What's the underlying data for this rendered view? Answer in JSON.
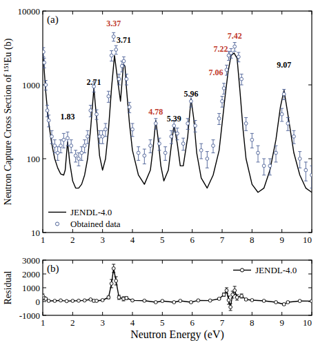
{
  "chart_data": [
    {
      "type": "line",
      "title": "(a)",
      "ylabel": "Neutron Capture Cross Section of ¹⁵¹Eu (b)",
      "log": "y",
      "xlim": [
        1,
        10
      ],
      "xticks": [
        1,
        2,
        3,
        4,
        5,
        6,
        7,
        8,
        9,
        10
      ],
      "ylim": [
        10,
        10000
      ],
      "yticks": [
        10,
        100,
        1000,
        10000
      ],
      "legend": "lower left",
      "series": [
        {
          "name": "JENDL-4.0",
          "type": "line",
          "color": "#000000",
          "x": [
            1.0,
            1.1,
            1.2,
            1.3,
            1.4,
            1.5,
            1.6,
            1.7,
            1.75,
            1.83,
            1.9,
            2.0,
            2.1,
            2.2,
            2.3,
            2.4,
            2.5,
            2.6,
            2.71,
            2.8,
            2.9,
            3.0,
            3.1,
            3.2,
            3.3,
            3.4,
            3.5,
            3.6,
            3.7,
            3.75,
            3.8,
            3.9,
            4.0,
            4.2,
            4.4,
            4.6,
            4.7,
            4.78,
            4.85,
            4.95,
            5.05,
            5.2,
            5.3,
            5.39,
            5.5,
            5.6,
            5.7,
            5.85,
            5.96,
            6.05,
            6.15,
            6.3,
            6.5,
            6.7,
            6.9,
            7.0,
            7.1,
            7.2,
            7.3,
            7.4,
            7.5,
            7.6,
            7.7,
            7.8,
            8.0,
            8.2,
            8.4,
            8.6,
            8.8,
            8.95,
            9.07,
            9.2,
            9.4,
            9.6,
            9.8,
            10.0
          ],
          "values": [
            3000,
            800,
            300,
            160,
            100,
            75,
            62,
            60,
            70,
            170,
            90,
            50,
            40,
            40,
            45,
            60,
            100,
            250,
            900,
            350,
            110,
            70,
            100,
            250,
            900,
            2500,
            1200,
            600,
            1900,
            1800,
            900,
            300,
            130,
            60,
            45,
            70,
            150,
            330,
            200,
            80,
            50,
            70,
            150,
            290,
            160,
            80,
            80,
            200,
            650,
            350,
            120,
            55,
            40,
            60,
            130,
            300,
            700,
            1500,
            2500,
            2700,
            2300,
            800,
            250,
            100,
            45,
            35,
            40,
            70,
            180,
            500,
            850,
            400,
            120,
            60,
            40,
            35
          ]
        },
        {
          "name": "Obtained data",
          "type": "scatter",
          "marker": "circle",
          "color": "#4a5f95",
          "x": [
            1.02,
            1.05,
            1.1,
            1.15,
            1.2,
            1.3,
            1.4,
            1.5,
            1.6,
            1.7,
            1.83,
            1.95,
            2.1,
            2.2,
            2.3,
            2.4,
            2.5,
            2.6,
            2.71,
            2.8,
            2.9,
            3.0,
            3.1,
            3.2,
            3.3,
            3.37,
            3.45,
            3.55,
            3.65,
            3.71,
            3.8,
            3.9,
            4.0,
            4.2,
            4.4,
            4.6,
            4.78,
            4.9,
            5.1,
            5.3,
            5.39,
            5.5,
            5.7,
            5.85,
            5.96,
            6.1,
            6.3,
            6.5,
            6.7,
            6.9,
            7.0,
            7.06,
            7.15,
            7.22,
            7.3,
            7.42,
            7.55,
            7.65,
            7.8,
            8.0,
            8.2,
            8.4,
            8.6,
            8.8,
            9.0,
            9.07,
            9.2,
            9.4,
            9.6,
            9.8,
            10.0
          ],
          "values": [
            2800,
            2000,
            1000,
            450,
            330,
            200,
            150,
            120,
            150,
            180,
            190,
            150,
            110,
            100,
            120,
            150,
            200,
            450,
            950,
            400,
            200,
            200,
            250,
            700,
            2500,
            4500,
            3000,
            1200,
            1800,
            2100,
            1200,
            500,
            250,
            120,
            110,
            150,
            300,
            160,
            120,
            200,
            280,
            220,
            160,
            300,
            600,
            280,
            130,
            100,
            150,
            350,
            600,
            900,
            1600,
            2500,
            2700,
            3300,
            2400,
            1200,
            300,
            180,
            120,
            80,
            80,
            120,
            400,
            750,
            300,
            200,
            100,
            70,
            60
          ],
          "errors": [
            400,
            300,
            150,
            80,
            60,
            40,
            30,
            25,
            30,
            40,
            40,
            30,
            20,
            20,
            25,
            30,
            40,
            80,
            150,
            60,
            40,
            40,
            50,
            120,
            400,
            600,
            400,
            200,
            300,
            300,
            200,
            80,
            50,
            25,
            25,
            30,
            50,
            30,
            25,
            40,
            50,
            40,
            30,
            50,
            100,
            50,
            30,
            25,
            30,
            60,
            100,
            150,
            250,
            350,
            400,
            450,
            350,
            200,
            60,
            40,
            30,
            20,
            20,
            30,
            80,
            120,
            60,
            40,
            25,
            20,
            20
          ]
        }
      ],
      "annotations": [
        {
          "text": "1.83",
          "x": 1.83,
          "y": 340,
          "color": "#000000"
        },
        {
          "text": "2.71",
          "x": 2.71,
          "y": 1000,
          "color": "#000000"
        },
        {
          "text": "3.37",
          "x": 3.37,
          "y": 6200,
          "color": "#c0392b"
        },
        {
          "text": "3.71",
          "x": 3.71,
          "y": 3700,
          "color": "#000000"
        },
        {
          "text": "4.78",
          "x": 4.78,
          "y": 400,
          "color": "#c0392b"
        },
        {
          "text": "5.39",
          "x": 5.39,
          "y": 320,
          "color": "#000000"
        },
        {
          "text": "5.96",
          "x": 5.96,
          "y": 690,
          "color": "#000000"
        },
        {
          "text": "7.06",
          "x": 7.06,
          "y": 1350,
          "color": "#c0392b"
        },
        {
          "text": "7.22",
          "x": 7.22,
          "y": 2800,
          "color": "#c0392b"
        },
        {
          "text": "7.42",
          "x": 7.42,
          "y": 4200,
          "color": "#c0392b"
        },
        {
          "text": "9.07",
          "x": 9.07,
          "y": 1700,
          "color": "#000000"
        }
      ]
    },
    {
      "type": "line",
      "title": "(b)",
      "xlabel": "Neutron Energy (eV)",
      "ylabel": "Residual",
      "xlim": [
        1,
        10
      ],
      "xticks": [
        1,
        2,
        3,
        4,
        5,
        6,
        7,
        8,
        9,
        10
      ],
      "ylim": [
        -1000,
        3000
      ],
      "yticks": [
        -1000,
        0,
        1000,
        2000,
        3000
      ],
      "legend": "upper right",
      "series": [
        {
          "name": "JENDL-4.0",
          "type": "line",
          "marker": "circle",
          "color": "#000000",
          "x": [
            1.0,
            1.05,
            1.1,
            1.2,
            1.4,
            1.6,
            1.8,
            2.0,
            2.2,
            2.4,
            2.6,
            2.71,
            2.8,
            3.0,
            3.2,
            3.3,
            3.37,
            3.45,
            3.55,
            3.7,
            3.8,
            4.0,
            4.4,
            4.78,
            5.0,
            5.39,
            5.6,
            5.96,
            6.2,
            6.6,
            6.9,
            7.06,
            7.15,
            7.22,
            7.28,
            7.35,
            7.42,
            7.5,
            7.65,
            7.8,
            8.0,
            8.4,
            8.8,
            9.07,
            9.2,
            9.6,
            10.0
          ],
          "values": [
            400,
            250,
            200,
            50,
            50,
            80,
            30,
            50,
            60,
            80,
            150,
            50,
            50,
            100,
            300,
            1300,
            2400,
            1500,
            300,
            200,
            250,
            80,
            60,
            -50,
            40,
            -50,
            50,
            -50,
            80,
            70,
            200,
            500,
            800,
            100,
            -400,
            500,
            800,
            300,
            400,
            150,
            100,
            50,
            -50,
            -200,
            -50,
            40,
            30
          ],
          "errors": [
            150,
            100,
            80,
            40,
            30,
            30,
            30,
            30,
            30,
            30,
            50,
            80,
            50,
            50,
            100,
            300,
            300,
            300,
            150,
            150,
            100,
            50,
            30,
            40,
            30,
            40,
            30,
            60,
            30,
            30,
            60,
            120,
            200,
            300,
            250,
            250,
            300,
            200,
            150,
            80,
            40,
            30,
            40,
            80,
            50,
            30,
            30
          ]
        }
      ]
    }
  ]
}
